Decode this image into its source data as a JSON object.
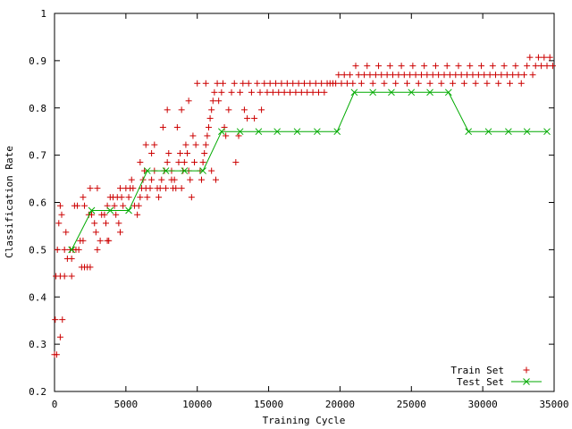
{
  "chart_data": {
    "type": "scatter",
    "title": "",
    "xlabel": "Training Cycle",
    "ylabel": "Classification Rate",
    "xlim": [
      0,
      35000
    ],
    "ylim": [
      0.2,
      1.0
    ],
    "xticks": [
      "0",
      "5000",
      "10000",
      "15000",
      "20000",
      "25000",
      "30000",
      "35000"
    ],
    "yticks": [
      "0.2",
      "0.3",
      "0.4",
      "0.5",
      "0.6",
      "0.7",
      "0.8",
      "0.9",
      "1"
    ],
    "legend_position": "bottom-right",
    "grid": false,
    "series": [
      {
        "name": "Train Set",
        "style": "points",
        "marker": "plus",
        "color": "#cc0000",
        "points": [
          [
            0,
            0.278
          ],
          [
            150,
            0.278
          ],
          [
            50,
            0.352
          ],
          [
            550,
            0.352
          ],
          [
            400,
            0.315
          ],
          [
            100,
            0.444
          ],
          [
            400,
            0.444
          ],
          [
            700,
            0.444
          ],
          [
            1200,
            0.444
          ],
          [
            200,
            0.5
          ],
          [
            700,
            0.5
          ],
          [
            1100,
            0.5
          ],
          [
            1300,
            0.5
          ],
          [
            900,
            0.481
          ],
          [
            1200,
            0.481
          ],
          [
            1500,
            0.5
          ],
          [
            1700,
            0.5
          ],
          [
            300,
            0.556
          ],
          [
            500,
            0.574
          ],
          [
            800,
            0.537
          ],
          [
            400,
            0.593
          ],
          [
            1400,
            0.593
          ],
          [
            1600,
            0.593
          ],
          [
            2100,
            0.593
          ],
          [
            1800,
            0.519
          ],
          [
            2000,
            0.519
          ],
          [
            1900,
            0.463
          ],
          [
            2100,
            0.463
          ],
          [
            2300,
            0.463
          ],
          [
            2500,
            0.463
          ],
          [
            2000,
            0.611
          ],
          [
            2400,
            0.574
          ],
          [
            2600,
            0.574
          ],
          [
            2800,
            0.556
          ],
          [
            2900,
            0.537
          ],
          [
            3000,
            0.5
          ],
          [
            3200,
            0.519
          ],
          [
            2500,
            0.63
          ],
          [
            3000,
            0.63
          ],
          [
            3300,
            0.574
          ],
          [
            3500,
            0.574
          ],
          [
            3600,
            0.556
          ],
          [
            3700,
            0.519
          ],
          [
            3800,
            0.519
          ],
          [
            3700,
            0.593
          ],
          [
            3900,
            0.611
          ],
          [
            4100,
            0.611
          ],
          [
            4200,
            0.593
          ],
          [
            4300,
            0.574
          ],
          [
            4500,
            0.556
          ],
          [
            4600,
            0.537
          ],
          [
            4400,
            0.611
          ],
          [
            4600,
            0.63
          ],
          [
            4700,
            0.611
          ],
          [
            4800,
            0.593
          ],
          [
            5000,
            0.63
          ],
          [
            5200,
            0.611
          ],
          [
            5300,
            0.63
          ],
          [
            5400,
            0.648
          ],
          [
            5500,
            0.63
          ],
          [
            5600,
            0.593
          ],
          [
            5800,
            0.574
          ],
          [
            5900,
            0.593
          ],
          [
            6000,
            0.611
          ],
          [
            6100,
            0.63
          ],
          [
            6200,
            0.648
          ],
          [
            6300,
            0.667
          ],
          [
            6400,
            0.63
          ],
          [
            6500,
            0.611
          ],
          [
            6700,
            0.63
          ],
          [
            6800,
            0.648
          ],
          [
            7000,
            0.667
          ],
          [
            6000,
            0.685
          ],
          [
            6400,
            0.722
          ],
          [
            6800,
            0.704
          ],
          [
            7000,
            0.722
          ],
          [
            7200,
            0.63
          ],
          [
            7300,
            0.611
          ],
          [
            7400,
            0.63
          ],
          [
            7500,
            0.648
          ],
          [
            7700,
            0.667
          ],
          [
            7800,
            0.63
          ],
          [
            7900,
            0.685
          ],
          [
            8000,
            0.704
          ],
          [
            8200,
            0.648
          ],
          [
            8300,
            0.63
          ],
          [
            7600,
            0.759
          ],
          [
            7900,
            0.796
          ],
          [
            8200,
            0.667
          ],
          [
            8400,
            0.648
          ],
          [
            8500,
            0.63
          ],
          [
            8700,
            0.685
          ],
          [
            8800,
            0.704
          ],
          [
            8900,
            0.63
          ],
          [
            9000,
            0.667
          ],
          [
            9100,
            0.685
          ],
          [
            9200,
            0.722
          ],
          [
            9300,
            0.704
          ],
          [
            9400,
            0.667
          ],
          [
            9500,
            0.648
          ],
          [
            8600,
            0.759
          ],
          [
            8900,
            0.796
          ],
          [
            9400,
            0.815
          ],
          [
            9600,
            0.611
          ],
          [
            9700,
            0.741
          ],
          [
            9800,
            0.685
          ],
          [
            9900,
            0.722
          ],
          [
            10000,
            0.852
          ],
          [
            10200,
            0.667
          ],
          [
            10300,
            0.648
          ],
          [
            10400,
            0.685
          ],
          [
            10500,
            0.704
          ],
          [
            10600,
            0.722
          ],
          [
            10700,
            0.741
          ],
          [
            10600,
            0.852
          ],
          [
            10800,
            0.759
          ],
          [
            10900,
            0.778
          ],
          [
            11000,
            0.796
          ],
          [
            11100,
            0.815
          ],
          [
            11200,
            0.833
          ],
          [
            11300,
            0.648
          ],
          [
            11000,
            0.667
          ],
          [
            11400,
            0.852
          ],
          [
            11500,
            0.815
          ],
          [
            11700,
            0.833
          ],
          [
            11800,
            0.852
          ],
          [
            11900,
            0.759
          ],
          [
            12000,
            0.741
          ],
          [
            12200,
            0.796
          ],
          [
            12400,
            0.833
          ],
          [
            12600,
            0.852
          ],
          [
            12700,
            0.685
          ],
          [
            12900,
            0.741
          ],
          [
            13000,
            0.833
          ],
          [
            13200,
            0.852
          ],
          [
            13300,
            0.796
          ],
          [
            13500,
            0.778
          ],
          [
            13600,
            0.852
          ],
          [
            13800,
            0.833
          ],
          [
            14000,
            0.778
          ],
          [
            14200,
            0.852
          ],
          [
            14400,
            0.833
          ],
          [
            14500,
            0.796
          ],
          [
            14700,
            0.852
          ],
          [
            14900,
            0.833
          ],
          [
            15100,
            0.852
          ],
          [
            15300,
            0.833
          ],
          [
            15500,
            0.852
          ],
          [
            15700,
            0.833
          ],
          [
            15900,
            0.852
          ],
          [
            16100,
            0.833
          ],
          [
            16300,
            0.852
          ],
          [
            16500,
            0.833
          ],
          [
            16700,
            0.852
          ],
          [
            16900,
            0.833
          ],
          [
            17100,
            0.852
          ],
          [
            17300,
            0.833
          ],
          [
            17500,
            0.852
          ],
          [
            17700,
            0.833
          ],
          [
            17900,
            0.852
          ],
          [
            18100,
            0.833
          ],
          [
            18300,
            0.852
          ],
          [
            18500,
            0.833
          ],
          [
            18700,
            0.852
          ],
          [
            18900,
            0.833
          ],
          [
            19100,
            0.852
          ],
          [
            19300,
            0.852
          ],
          [
            19500,
            0.852
          ],
          [
            19700,
            0.852
          ],
          [
            19900,
            0.87
          ],
          [
            20100,
            0.852
          ],
          [
            20300,
            0.87
          ],
          [
            20500,
            0.852
          ],
          [
            20700,
            0.87
          ],
          [
            20900,
            0.852
          ],
          [
            21100,
            0.889
          ],
          [
            21300,
            0.87
          ],
          [
            21500,
            0.852
          ],
          [
            21700,
            0.87
          ],
          [
            21900,
            0.889
          ],
          [
            22100,
            0.87
          ],
          [
            22300,
            0.852
          ],
          [
            22500,
            0.87
          ],
          [
            22700,
            0.889
          ],
          [
            22900,
            0.87
          ],
          [
            23100,
            0.852
          ],
          [
            23300,
            0.87
          ],
          [
            23500,
            0.889
          ],
          [
            23700,
            0.87
          ],
          [
            23900,
            0.852
          ],
          [
            24100,
            0.87
          ],
          [
            24300,
            0.889
          ],
          [
            24500,
            0.87
          ],
          [
            24700,
            0.852
          ],
          [
            24900,
            0.87
          ],
          [
            25100,
            0.889
          ],
          [
            25300,
            0.87
          ],
          [
            25500,
            0.852
          ],
          [
            25700,
            0.87
          ],
          [
            25900,
            0.889
          ],
          [
            26100,
            0.87
          ],
          [
            26300,
            0.852
          ],
          [
            26500,
            0.87
          ],
          [
            26700,
            0.889
          ],
          [
            26900,
            0.87
          ],
          [
            27100,
            0.852
          ],
          [
            27300,
            0.87
          ],
          [
            27500,
            0.889
          ],
          [
            27700,
            0.87
          ],
          [
            27900,
            0.852
          ],
          [
            28100,
            0.87
          ],
          [
            28300,
            0.889
          ],
          [
            28500,
            0.87
          ],
          [
            28700,
            0.852
          ],
          [
            28900,
            0.87
          ],
          [
            29100,
            0.889
          ],
          [
            29300,
            0.87
          ],
          [
            29500,
            0.852
          ],
          [
            29700,
            0.87
          ],
          [
            29900,
            0.889
          ],
          [
            30100,
            0.87
          ],
          [
            30300,
            0.852
          ],
          [
            30500,
            0.87
          ],
          [
            30700,
            0.889
          ],
          [
            30900,
            0.87
          ],
          [
            31100,
            0.852
          ],
          [
            31300,
            0.87
          ],
          [
            31500,
            0.889
          ],
          [
            31700,
            0.87
          ],
          [
            31900,
            0.852
          ],
          [
            32100,
            0.87
          ],
          [
            32300,
            0.889
          ],
          [
            32500,
            0.87
          ],
          [
            32700,
            0.852
          ],
          [
            32900,
            0.87
          ],
          [
            33100,
            0.889
          ],
          [
            33300,
            0.907
          ],
          [
            33500,
            0.87
          ],
          [
            33700,
            0.889
          ],
          [
            33900,
            0.907
          ],
          [
            34100,
            0.889
          ],
          [
            34300,
            0.907
          ],
          [
            34500,
            0.889
          ],
          [
            34700,
            0.907
          ],
          [
            34900,
            0.889
          ]
        ]
      },
      {
        "name": "Test Set",
        "style": "linespoints",
        "marker": "x",
        "color": "#00aa00",
        "points": [
          [
            1200,
            0.5
          ],
          [
            2600,
            0.583
          ],
          [
            3900,
            0.583
          ],
          [
            5200,
            0.583
          ],
          [
            6500,
            0.667
          ],
          [
            7800,
            0.667
          ],
          [
            9100,
            0.667
          ],
          [
            10400,
            0.667
          ],
          [
            11700,
            0.75
          ],
          [
            13000,
            0.75
          ],
          [
            14300,
            0.75
          ],
          [
            15600,
            0.75
          ],
          [
            17000,
            0.75
          ],
          [
            18400,
            0.75
          ],
          [
            19800,
            0.75
          ],
          [
            21000,
            0.833
          ],
          [
            22300,
            0.833
          ],
          [
            23600,
            0.833
          ],
          [
            25000,
            0.833
          ],
          [
            26300,
            0.833
          ],
          [
            27600,
            0.833
          ],
          [
            29000,
            0.75
          ],
          [
            30400,
            0.75
          ],
          [
            31800,
            0.75
          ],
          [
            33100,
            0.75
          ],
          [
            34500,
            0.75
          ]
        ]
      }
    ]
  }
}
